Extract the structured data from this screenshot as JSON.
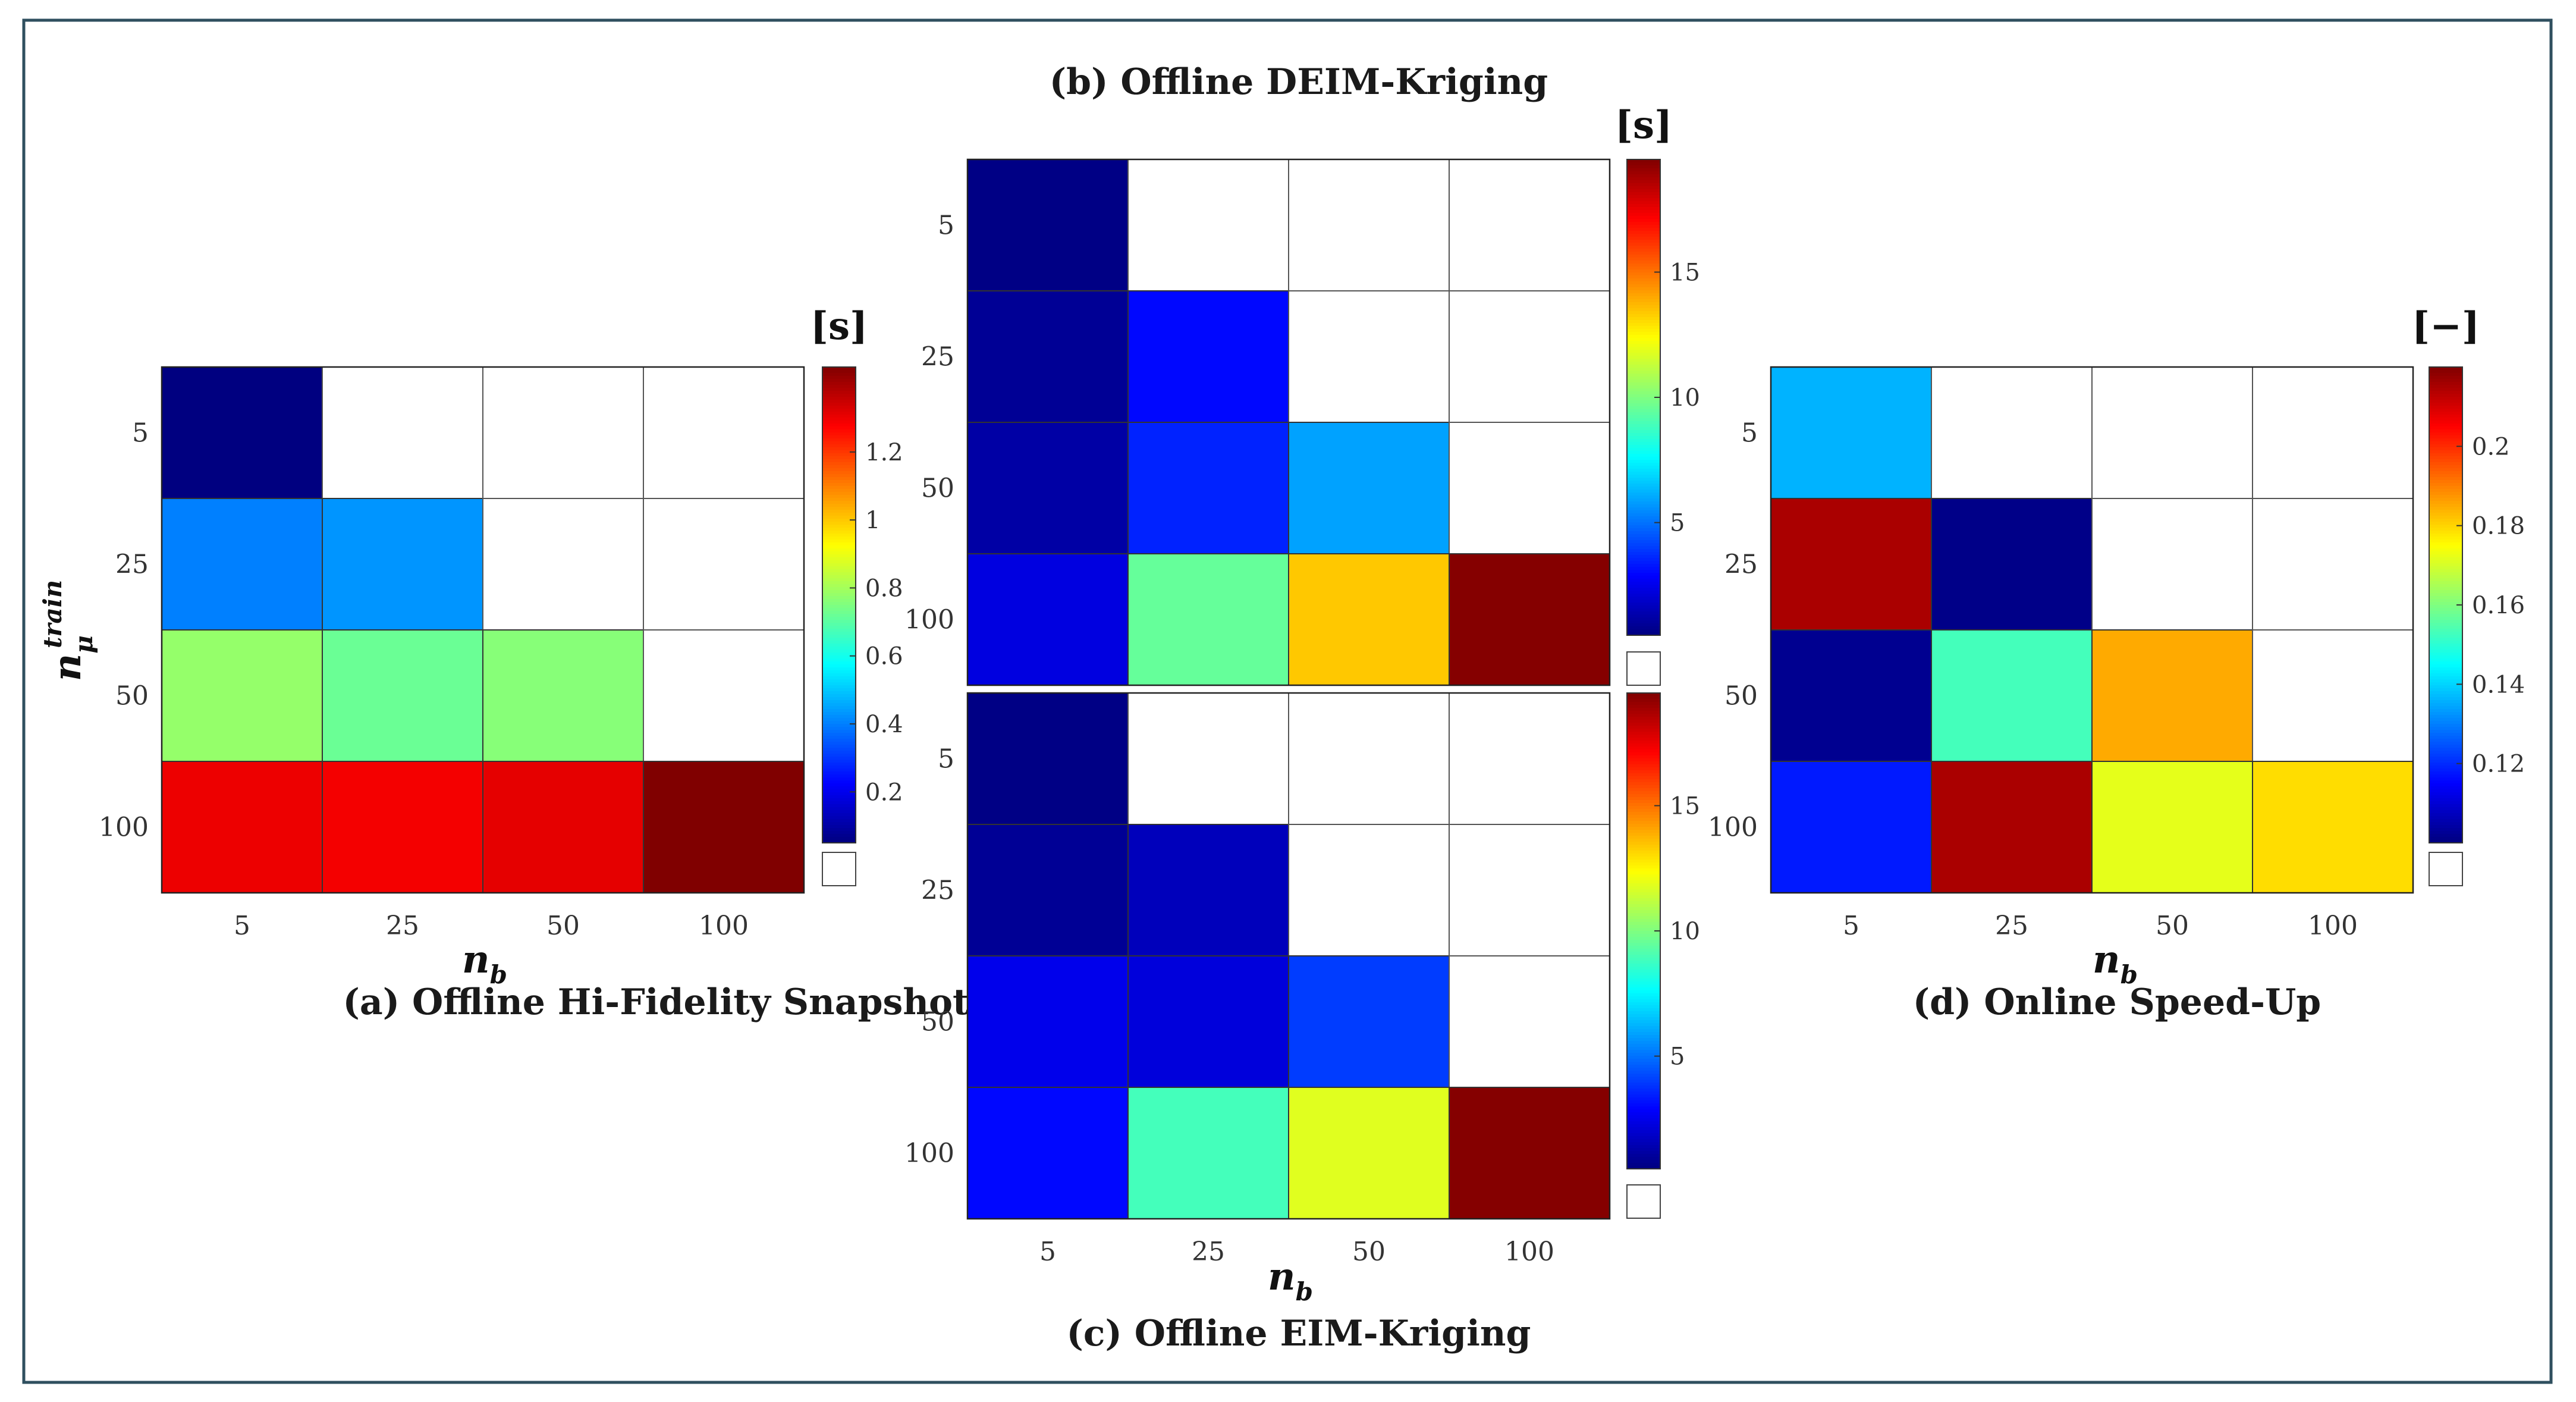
{
  "chart_data": [
    {
      "id": "a",
      "type": "heatmap",
      "title": "(a) Offline Hi-Fidelity Snapshots",
      "xlabel": "n_b",
      "ylabel": "n_μ^train",
      "x_categories": [
        "5",
        "25",
        "50",
        "100"
      ],
      "y_categories": [
        "5",
        "25",
        "50",
        "100"
      ],
      "values": [
        [
          0.05,
          null,
          null,
          null
        ],
        [
          0.4,
          0.43,
          null,
          null
        ],
        [
          0.78,
          0.72,
          0.76,
          null
        ],
        [
          1.3,
          1.29,
          1.31,
          1.45
        ]
      ],
      "colorbar": {
        "unit": "[s]",
        "min": 0.05,
        "max": 1.45,
        "ticks": [
          0.2,
          0.4,
          0.6,
          0.8,
          1,
          1.2
        ]
      }
    },
    {
      "id": "b",
      "type": "heatmap",
      "title": "(b) Offline DEIM-Kriging",
      "xlabel": "n_b",
      "ylabel": "",
      "x_categories": [
        "5",
        "25",
        "50",
        "100"
      ],
      "y_categories": [
        "5",
        "25",
        "50",
        "100"
      ],
      "values": [
        [
          0.6,
          null,
          null,
          null
        ],
        [
          0.9,
          3.0,
          null,
          null
        ],
        [
          1.2,
          3.5,
          5.9,
          null
        ],
        [
          2.3,
          9.5,
          13.4,
          19.4
        ]
      ],
      "colorbar": {
        "unit": "[s]",
        "min": 0.5,
        "max": 19.5,
        "ticks": [
          5,
          10,
          15
        ]
      }
    },
    {
      "id": "c",
      "type": "heatmap",
      "title": "(c) Offline EIM-Kriging",
      "xlabel": "n_b",
      "ylabel": "",
      "x_categories": [
        "5",
        "25",
        "50",
        "100"
      ],
      "y_categories": [
        "5",
        "25",
        "50",
        "100"
      ],
      "values": [
        [
          0.6,
          null,
          null,
          null
        ],
        [
          0.9,
          1.6,
          null,
          null
        ],
        [
          2.5,
          2.2,
          4.0,
          null
        ],
        [
          3.0,
          8.9,
          11.8,
          19.4
        ]
      ],
      "colorbar": {
        "unit": "[s]",
        "min": 0.5,
        "max": 19.5,
        "ticks": [
          5,
          10,
          15
        ]
      }
    },
    {
      "id": "d",
      "type": "heatmap",
      "title": "(d) Online Speed-Up",
      "xlabel": "n_b",
      "ylabel": "",
      "x_categories": [
        "5",
        "25",
        "50",
        "100"
      ],
      "y_categories": [
        "5",
        "25",
        "50",
        "100"
      ],
      "values": [
        [
          0.136,
          null,
          null,
          null
        ],
        [
          0.215,
          0.101,
          null,
          null
        ],
        [
          0.102,
          0.153,
          0.185,
          null
        ],
        [
          0.118,
          0.215,
          0.172,
          0.179
        ]
      ],
      "colorbar": {
        "unit": "[−]",
        "min": 0.1,
        "max": 0.22,
        "ticks": [
          0.12,
          0.14,
          0.16,
          0.18,
          0.2
        ]
      }
    }
  ]
}
